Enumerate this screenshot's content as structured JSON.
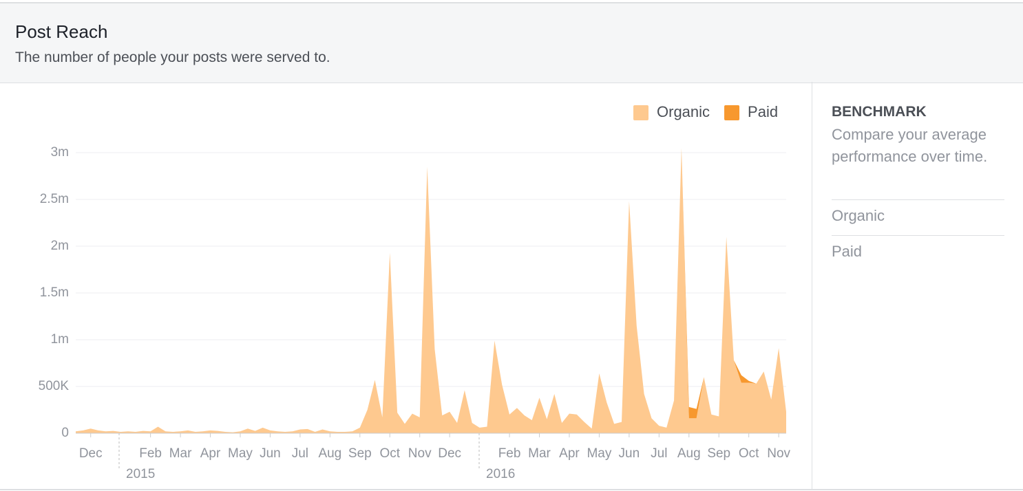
{
  "header": {
    "title": "Post Reach",
    "subtitle": "The number of people your posts were served to."
  },
  "sidebar": {
    "title": "BENCHMARK",
    "description": "Compare your average performance over time.",
    "items": [
      "Organic",
      "Paid"
    ]
  },
  "chart_data": {
    "type": "area",
    "stacked": true,
    "grid": true,
    "legend": "top-right",
    "categories": [
      null,
      null,
      "Dec",
      null,
      null,
      null,
      null,
      null,
      null,
      null,
      "Feb",
      null,
      null,
      null,
      "Mar",
      null,
      null,
      null,
      "Apr",
      null,
      null,
      null,
      "May",
      null,
      null,
      null,
      "Jun",
      null,
      null,
      null,
      "Jul",
      null,
      null,
      null,
      "Aug",
      null,
      null,
      null,
      "Sep",
      null,
      null,
      null,
      "Oct",
      null,
      null,
      null,
      "Nov",
      null,
      null,
      null,
      "Dec",
      null,
      null,
      null,
      null,
      null,
      null,
      null,
      "Feb",
      null,
      null,
      null,
      "Mar",
      null,
      null,
      null,
      "Apr",
      null,
      null,
      null,
      "May",
      null,
      null,
      null,
      "Jun",
      null,
      null,
      null,
      "Jul",
      null,
      null,
      null,
      "Aug",
      null,
      null,
      null,
      "Sep",
      null,
      null,
      null,
      "Oct",
      null,
      null,
      null,
      "Nov",
      null
    ],
    "year_labels": [
      "2015",
      "2016"
    ],
    "series": [
      {
        "name": "Organic",
        "color": "#fec98f",
        "values": [
          20000,
          30000,
          50000,
          30000,
          20000,
          25000,
          15000,
          20000,
          15000,
          25000,
          20000,
          70000,
          20000,
          15000,
          20000,
          30000,
          15000,
          20000,
          30000,
          25000,
          15000,
          10000,
          20000,
          50000,
          25000,
          60000,
          30000,
          20000,
          15000,
          20000,
          40000,
          45000,
          15000,
          40000,
          20000,
          15000,
          15000,
          20000,
          60000,
          250000,
          570000,
          170000,
          1930000,
          220000,
          100000,
          210000,
          170000,
          2850000,
          900000,
          190000,
          230000,
          110000,
          460000,
          110000,
          60000,
          70000,
          990000,
          520000,
          200000,
          270000,
          190000,
          140000,
          380000,
          150000,
          420000,
          110000,
          210000,
          200000,
          120000,
          50000,
          640000,
          330000,
          100000,
          120000,
          2480000,
          1150000,
          420000,
          160000,
          80000,
          60000,
          350000,
          3050000,
          160000,
          160000,
          600000,
          200000,
          180000,
          2100000,
          780000,
          540000,
          540000,
          530000,
          660000,
          360000,
          910000,
          230000
        ]
      },
      {
        "name": "Paid",
        "color": "#f7982e",
        "values": [
          0,
          0,
          0,
          0,
          0,
          0,
          0,
          0,
          0,
          0,
          0,
          0,
          0,
          0,
          0,
          0,
          0,
          0,
          0,
          0,
          0,
          0,
          0,
          0,
          0,
          0,
          0,
          0,
          0,
          0,
          0,
          0,
          0,
          0,
          0,
          0,
          0,
          0,
          0,
          0,
          0,
          0,
          0,
          0,
          0,
          0,
          0,
          0,
          0,
          0,
          0,
          0,
          0,
          0,
          0,
          0,
          0,
          0,
          0,
          0,
          0,
          0,
          0,
          0,
          0,
          0,
          0,
          0,
          0,
          0,
          0,
          0,
          0,
          0,
          0,
          0,
          0,
          0,
          0,
          0,
          0,
          0,
          120000,
          100000,
          0,
          0,
          0,
          0,
          0,
          80000,
          20000,
          0,
          0,
          0,
          0,
          0
        ]
      }
    ],
    "ylim": [
      0,
      3000000
    ],
    "yticks": [
      0,
      {
        "value": 500000,
        "label": "500K"
      },
      {
        "value": 1000000,
        "label": "1m"
      },
      {
        "value": 1500000,
        "label": "1.5m"
      },
      {
        "value": 2000000,
        "label": "2m"
      },
      {
        "value": 2500000,
        "label": "2.5m"
      },
      {
        "value": 3000000,
        "label": "3m"
      }
    ]
  }
}
